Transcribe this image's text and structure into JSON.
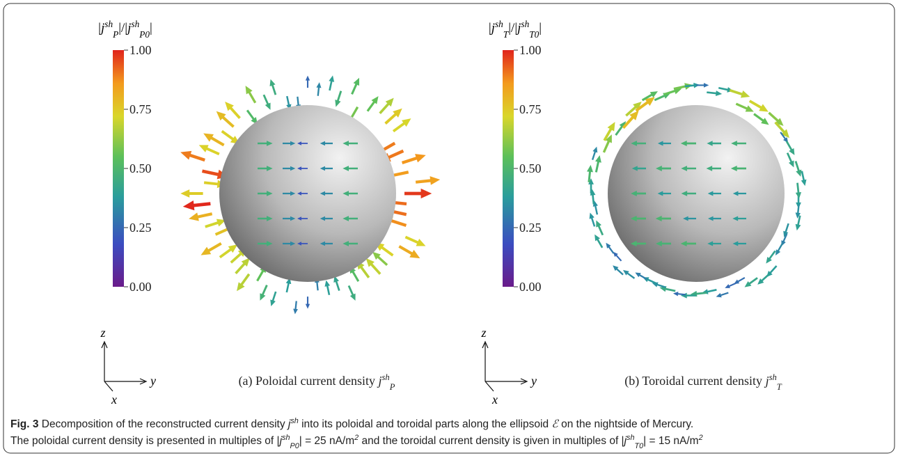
{
  "panels": [
    {
      "colorbar": {
        "label": [
          {
            "text": "|"
          },
          {
            "italic": "j"
          },
          {
            "sup": "sh"
          },
          {
            "sub": "P"
          },
          {
            "text": "|/|"
          },
          {
            "italic": "j"
          },
          {
            "sup": "sh"
          },
          {
            "sub": "P0"
          },
          {
            "text": "|"
          }
        ],
        "ticks": [
          {
            "value": 0,
            "label": "0.00"
          },
          {
            "value": 0.25,
            "label": "0.25"
          },
          {
            "value": 0.5,
            "label": "0.50"
          },
          {
            "value": 0.75,
            "label": "0.75"
          },
          {
            "value": 1,
            "label": "1.00"
          }
        ]
      },
      "caption": [
        {
          "text": "(a) Poloidal current density "
        },
        {
          "italic": "j"
        },
        {
          "sup": "sh"
        },
        {
          "sub": "P"
        }
      ],
      "axes": {
        "z": "z",
        "y": "y",
        "x": "x"
      }
    },
    {
      "colorbar": {
        "label": [
          {
            "text": "|"
          },
          {
            "italic": "j"
          },
          {
            "sup": "sh"
          },
          {
            "sub": "T"
          },
          {
            "text": "|/|"
          },
          {
            "italic": "j"
          },
          {
            "sup": "sh"
          },
          {
            "sub": "T0"
          },
          {
            "text": "|"
          }
        ],
        "ticks": [
          {
            "value": 0,
            "label": "0.00"
          },
          {
            "value": 0.25,
            "label": "0.25"
          },
          {
            "value": 0.5,
            "label": "0.50"
          },
          {
            "value": 0.75,
            "label": "0.75"
          },
          {
            "value": 1,
            "label": "1.00"
          }
        ]
      },
      "caption": [
        {
          "text": "(b) Toroidal current density "
        },
        {
          "italic": "j"
        },
        {
          "sup": "sh"
        },
        {
          "sub": "T"
        }
      ],
      "axes": {
        "z": "z",
        "y": "y",
        "x": "x"
      }
    }
  ],
  "figure_caption": {
    "line1": [
      {
        "bold": "Fig. 3"
      },
      {
        "text": "  Decomposition of the reconstructed current density "
      },
      {
        "italic": "j"
      },
      {
        "sup": "sh"
      },
      {
        "text": " into its poloidal and toroidal parts along the ellipsoid "
      },
      {
        "italic": "ℰ"
      },
      {
        "text": " on the nightside of Mercury."
      }
    ],
    "line2": [
      {
        "text": "The poloidal current density is presented in multiples of |"
      },
      {
        "italic": "j"
      },
      {
        "sup": "sh"
      },
      {
        "sub": "P0"
      },
      {
        "text": "| = 25 nA/m"
      },
      {
        "sup": "2"
      },
      {
        "text": " and the toroidal current density is given in multiples of |"
      },
      {
        "italic": "j"
      },
      {
        "sup": "sh"
      },
      {
        "sub": "T0"
      },
      {
        "text": "| = 15 nA/m"
      },
      {
        "sup": "2"
      }
    ]
  }
}
